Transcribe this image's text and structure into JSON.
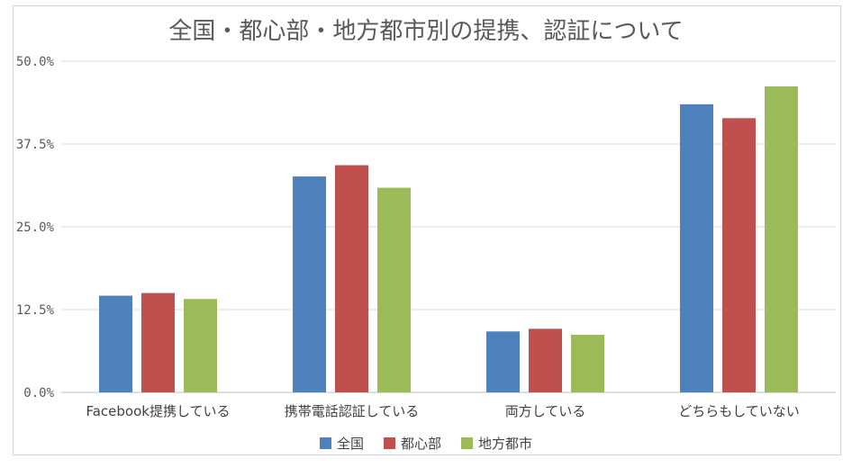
{
  "chart_data": {
    "type": "bar",
    "title": "全国・都心部・地方都市別の提携、認証について",
    "categories": [
      "Facebook提携している",
      "携帯電話認証している",
      "両方している",
      "どちらもしていない"
    ],
    "series": [
      {
        "name": "全国",
        "color": "#4F81BD",
        "values": [
          14.6,
          32.6,
          9.2,
          43.5
        ]
      },
      {
        "name": "都心部",
        "color": "#C0504D",
        "values": [
          15.0,
          34.3,
          9.6,
          41.4
        ]
      },
      {
        "name": "地方都市",
        "color": "#9BBB59",
        "values": [
          14.1,
          30.9,
          8.7,
          46.2
        ]
      }
    ],
    "ylim": [
      0,
      50
    ],
    "yticks": [
      "0.0%",
      "12.5%",
      "25.0%",
      "37.5%",
      "50.0%"
    ],
    "grid": true,
    "legend_position": "bottom"
  }
}
